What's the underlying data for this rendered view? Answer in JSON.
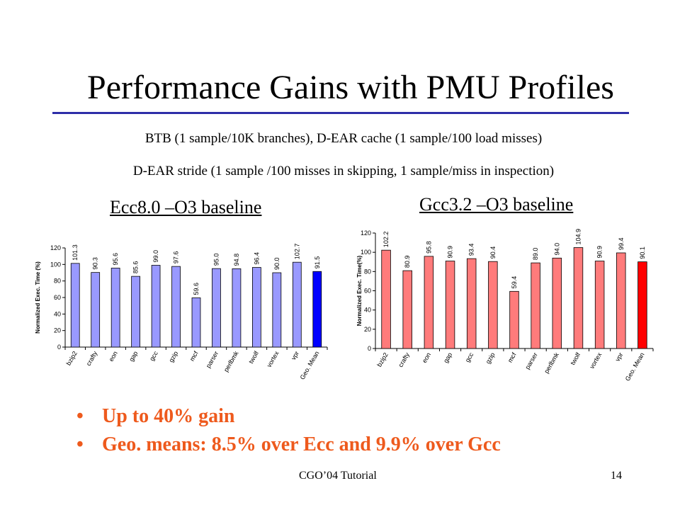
{
  "slide": {
    "title": "Performance Gains with PMU Profiles",
    "subtitle_1": "BTB (1 sample/10K branches), D-EAR cache (1 sample/100 load misses)",
    "subtitle_2": "D-EAR stride (1 sample /100 misses in skipping, 1 sample/miss in inspection)",
    "bullets": [
      "Up to 40% gain",
      "Geo. means: 8.5% over Ecc and 9.9% over Gcc"
    ],
    "footer_left": "CGO’04 Tutorial",
    "page_number": "14"
  },
  "colors": {
    "title_rule": "#2e2ea8",
    "bullet_text": "#ee5a1d",
    "ecc_bar": "#9999ff",
    "ecc_mean_bar": "#0000ff",
    "gcc_bar": "#ff7b7b",
    "gcc_mean_bar": "#ff0000"
  },
  "chart_data": [
    {
      "type": "bar",
      "title": "Ecc8.0 –O3 baseline",
      "ylabel": "Normalized Exec. Time (%)",
      "ylim": [
        0,
        120
      ],
      "yticks": [
        0,
        20,
        40,
        60,
        80,
        100,
        120
      ],
      "categories": [
        "bzip2",
        "crafty",
        "eon",
        "gap",
        "gcc",
        "gzip",
        "mcf",
        "parser",
        "perlbmk",
        "twolf",
        "vortex",
        "vpr",
        "Geo. Mean"
      ],
      "values": [
        101.3,
        90.3,
        95.6,
        85.6,
        99.0,
        97.6,
        59.6,
        95.0,
        94.8,
        96.4,
        90.0,
        102.7,
        91.5
      ],
      "value_labels": [
        "101.3",
        "90.3",
        "95.6",
        "85.6",
        "99.0",
        "97.6",
        "59.6",
        "95.0",
        "94.8",
        "96.4",
        "90.0",
        "102.7",
        "91.5"
      ],
      "grid": false,
      "legend": "none"
    },
    {
      "type": "bar",
      "title": "Gcc3.2 –O3 baseline",
      "ylabel": "Normalized Exec. Time(%)",
      "ylim": [
        0,
        120
      ],
      "yticks": [
        0,
        20,
        40,
        60,
        80,
        100,
        120
      ],
      "categories": [
        "bzip2",
        "crafty",
        "eon",
        "gap",
        "gcc",
        "gzip",
        "mcf",
        "parser",
        "perlbmk",
        "twolf",
        "vortex",
        "vpr",
        "Geo. Mean"
      ],
      "values": [
        102.2,
        80.9,
        95.8,
        90.9,
        93.4,
        90.4,
        59.4,
        89.0,
        94.0,
        104.9,
        90.9,
        99.4,
        90.1
      ],
      "value_labels": [
        "102.2",
        "80.9",
        "95.8",
        "90.9",
        "93.4",
        "90.4",
        "59.4",
        "89.0",
        "94.0",
        "104.9",
        "90.9",
        "99.4",
        "90.1"
      ],
      "grid": false,
      "legend": "none"
    }
  ]
}
